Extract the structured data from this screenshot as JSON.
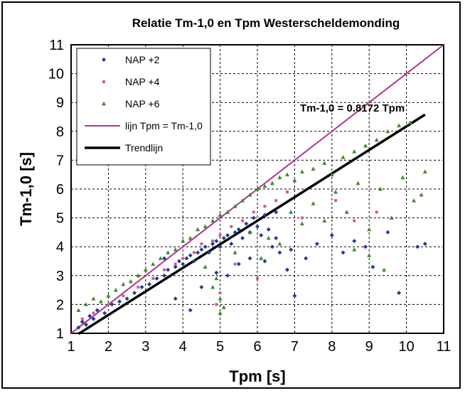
{
  "chart_data": {
    "type": "scatter",
    "title": "Relatie Tm-1,0 en Tpm Westerscheldemonding",
    "xlabel": "Tpm [s]",
    "ylabel": "Tm-1,0 [s]",
    "xlim": [
      1,
      11
    ],
    "ylim": [
      1,
      11
    ],
    "x_ticks": [
      "1",
      "2",
      "3",
      "4",
      "5",
      "6",
      "7",
      "8",
      "9",
      "10",
      "11"
    ],
    "y_ticks": [
      "1",
      "2",
      "3",
      "4",
      "5",
      "6",
      "7",
      "8",
      "9",
      "10",
      "11"
    ],
    "grid": true,
    "legend_position": "top-left",
    "annotation": "Tm-1,0 = 0.8172 Tpm",
    "series": [
      {
        "name": "NAP +2",
        "kind": "points",
        "marker": "diamond",
        "color": "#1f3f8f",
        "points": [
          [
            1.2,
            1.2
          ],
          [
            1.3,
            1.4
          ],
          [
            1.4,
            1.3
          ],
          [
            1.5,
            1.6
          ],
          [
            1.6,
            1.5
          ],
          [
            1.7,
            1.8
          ],
          [
            1.9,
            1.7
          ],
          [
            2.1,
            2.0
          ],
          [
            2.3,
            2.1
          ],
          [
            2.5,
            2.2
          ],
          [
            2.7,
            2.4
          ],
          [
            2.9,
            2.6
          ],
          [
            3.1,
            2.7
          ],
          [
            3.3,
            2.9
          ],
          [
            3.5,
            3.0
          ],
          [
            3.6,
            3.2
          ],
          [
            3.8,
            3.3
          ],
          [
            3.9,
            3.5
          ],
          [
            4.0,
            3.4
          ],
          [
            4.1,
            3.6
          ],
          [
            4.2,
            3.7
          ],
          [
            4.3,
            3.5
          ],
          [
            4.4,
            3.8
          ],
          [
            4.5,
            3.9
          ],
          [
            4.6,
            4.0
          ],
          [
            4.7,
            3.8
          ],
          [
            4.8,
            4.1
          ],
          [
            4.9,
            4.2
          ],
          [
            5.0,
            4.0
          ],
          [
            5.1,
            4.3
          ],
          [
            5.2,
            4.4
          ],
          [
            5.3,
            4.1
          ],
          [
            5.4,
            4.5
          ],
          [
            5.5,
            4.6
          ],
          [
            5.6,
            4.3
          ],
          [
            5.7,
            4.8
          ],
          [
            5.8,
            4.5
          ],
          [
            5.9,
            5.0
          ],
          [
            6.0,
            4.7
          ],
          [
            6.1,
            4.4
          ],
          [
            6.2,
            5.1
          ],
          [
            6.3,
            4.6
          ],
          [
            6.4,
            4.0
          ],
          [
            6.5,
            5.2
          ],
          [
            6.6,
            3.8
          ],
          [
            6.8,
            3.2
          ],
          [
            7.0,
            2.3
          ],
          [
            3.5,
            3.6
          ],
          [
            3.8,
            2.2
          ],
          [
            4.2,
            1.8
          ],
          [
            4.5,
            2.6
          ],
          [
            4.9,
            3.1
          ],
          [
            5.2,
            3.0
          ],
          [
            5.5,
            3.4
          ],
          [
            5.8,
            3.6
          ],
          [
            6.2,
            3.5
          ],
          [
            6.5,
            4.3
          ],
          [
            6.9,
            3.9
          ],
          [
            7.3,
            3.6
          ],
          [
            7.6,
            4.1
          ],
          [
            8.0,
            4.4
          ],
          [
            8.3,
            3.8
          ],
          [
            8.6,
            4.2
          ],
          [
            8.9,
            4.0
          ],
          [
            9.1,
            3.3
          ],
          [
            9.5,
            4.5
          ],
          [
            9.8,
            2.4
          ],
          [
            10.3,
            4.0
          ],
          [
            10.5,
            4.1
          ]
        ]
      },
      {
        "name": "NAP +4",
        "kind": "points",
        "marker": "square",
        "color": "#d45a9a",
        "points": [
          [
            1.3,
            1.5
          ],
          [
            1.6,
            1.7
          ],
          [
            2.0,
            2.0
          ],
          [
            2.4,
            2.3
          ],
          [
            2.8,
            2.6
          ],
          [
            3.2,
            2.9
          ],
          [
            3.5,
            3.2
          ],
          [
            3.8,
            3.4
          ],
          [
            4.0,
            3.6
          ],
          [
            4.3,
            3.8
          ],
          [
            4.5,
            4.1
          ],
          [
            4.8,
            4.2
          ],
          [
            5.0,
            4.4
          ],
          [
            5.3,
            4.7
          ],
          [
            5.6,
            4.9
          ],
          [
            5.9,
            5.2
          ],
          [
            6.2,
            5.4
          ],
          [
            6.5,
            5.6
          ],
          [
            6.8,
            5.9
          ],
          [
            4.9,
            2.0
          ],
          [
            5.0,
            2.4
          ],
          [
            5.4,
            3.4
          ],
          [
            6.0,
            2.9
          ],
          [
            7.2,
            5.0
          ],
          [
            8.1,
            5.6
          ],
          [
            8.6,
            4.9
          ],
          [
            9.2,
            5.2
          ]
        ]
      },
      {
        "name": "NAP +6",
        "kind": "points",
        "marker": "triangle",
        "color": "#3d8a2a",
        "points": [
          [
            1.2,
            1.8
          ],
          [
            1.4,
            2.0
          ],
          [
            1.6,
            2.2
          ],
          [
            1.8,
            2.1
          ],
          [
            2.0,
            2.3
          ],
          [
            2.2,
            2.5
          ],
          [
            2.4,
            2.7
          ],
          [
            2.6,
            2.8
          ],
          [
            2.8,
            3.0
          ],
          [
            3.0,
            3.2
          ],
          [
            3.2,
            3.4
          ],
          [
            3.4,
            3.6
          ],
          [
            3.6,
            3.8
          ],
          [
            3.8,
            3.9
          ],
          [
            4.0,
            4.2
          ],
          [
            4.2,
            4.3
          ],
          [
            4.4,
            4.6
          ],
          [
            4.6,
            4.7
          ],
          [
            4.8,
            4.9
          ],
          [
            5.0,
            5.1
          ],
          [
            5.2,
            5.2
          ],
          [
            5.4,
            5.4
          ],
          [
            5.6,
            5.6
          ],
          [
            5.8,
            5.8
          ],
          [
            6.0,
            6.0
          ],
          [
            6.2,
            6.1
          ],
          [
            6.4,
            6.2
          ],
          [
            6.6,
            6.4
          ],
          [
            6.8,
            6.5
          ],
          [
            7.0,
            6.3
          ],
          [
            7.2,
            6.6
          ],
          [
            7.5,
            6.7
          ],
          [
            7.8,
            6.9
          ],
          [
            8.0,
            6.5
          ],
          [
            8.3,
            7.1
          ],
          [
            8.6,
            7.3
          ],
          [
            8.9,
            7.5
          ],
          [
            9.2,
            7.7
          ],
          [
            9.5,
            8.0
          ],
          [
            9.8,
            8.2
          ],
          [
            10.1,
            8.3
          ],
          [
            10.4,
            5.8
          ],
          [
            10.5,
            6.6
          ],
          [
            4.6,
            3.3
          ],
          [
            4.8,
            2.6
          ],
          [
            5.0,
            1.7
          ],
          [
            5.0,
            2.2
          ],
          [
            5.1,
            1.9
          ],
          [
            4.9,
            2.9
          ],
          [
            5.4,
            3.8
          ],
          [
            5.8,
            4.5
          ],
          [
            6.1,
            3.6
          ],
          [
            6.3,
            4.3
          ],
          [
            6.6,
            4.1
          ],
          [
            6.9,
            5.2
          ],
          [
            7.2,
            4.8
          ],
          [
            7.5,
            5.5
          ],
          [
            7.8,
            4.9
          ],
          [
            8.1,
            5.9
          ],
          [
            8.4,
            5.2
          ],
          [
            8.7,
            6.2
          ],
          [
            9.0,
            4.6
          ],
          [
            9.3,
            6.0
          ],
          [
            9.6,
            5.0
          ],
          [
            9.9,
            6.4
          ],
          [
            10.2,
            5.6
          ],
          [
            9.4,
            3.2
          ],
          [
            9.0,
            3.7
          ],
          [
            8.6,
            3.9
          ]
        ]
      },
      {
        "name": "lijn Tpm = Tm-1,0",
        "kind": "line",
        "color": "#b0338f",
        "points": [
          [
            1,
            1
          ],
          [
            11,
            11
          ]
        ]
      },
      {
        "name": "Trendlijn",
        "kind": "line",
        "color": "#000000",
        "points": [
          [
            1.2,
            0.98
          ],
          [
            10.5,
            8.58
          ]
        ]
      }
    ]
  }
}
